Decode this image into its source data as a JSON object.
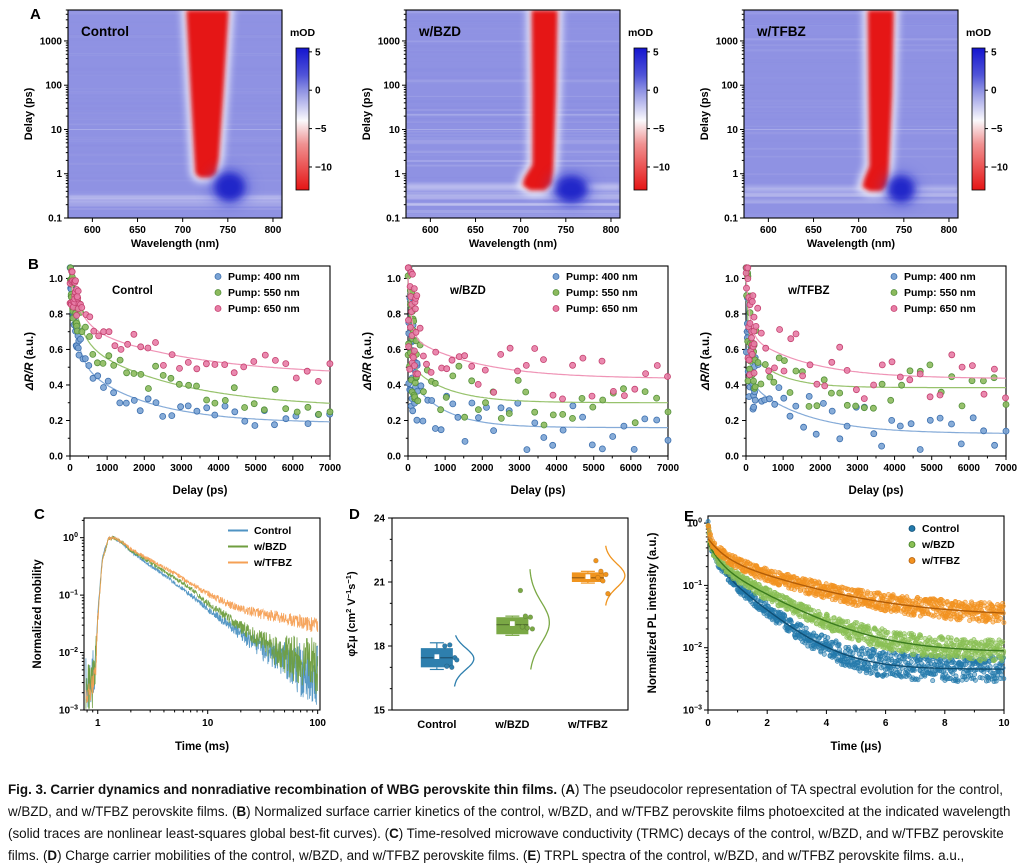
{
  "panel_labels": {
    "A": "A",
    "B": "B",
    "C": "C",
    "D": "D",
    "E": "E"
  },
  "figure": {
    "caption": [
      {
        "b": true,
        "t": "Fig. 3. Carrier dynamics and nonradiative recombination of WBG perovskite thin films."
      },
      {
        "b": false,
        "t": " ("
      },
      {
        "b": true,
        "t": "A"
      },
      {
        "b": false,
        "t": ") The pseudocolor representation of TA spectral evolution for the control, w/BZD, and w/TFBZ perovskite films. ("
      },
      {
        "b": true,
        "t": "B"
      },
      {
        "b": false,
        "t": ") Normalized surface carrier kinetics of the control, w/BZD, and w/TFBZ perovskite films photoexcited at the indicated wavelength (solid traces are nonlinear least-squares global best-fit curves). ("
      },
      {
        "b": true,
        "t": "C"
      },
      {
        "b": false,
        "t": ") Time-resolved microwave conductivity (TRMC) decays of the control, w/BZD, and w/TFBZ perovskite films. ("
      },
      {
        "b": true,
        "t": "D"
      },
      {
        "b": false,
        "t": ") Charge carrier mobilities of the control, w/BZD, and w/TFBZ perovskite films. ("
      },
      {
        "b": true,
        "t": "E"
      },
      {
        "b": false,
        "t": ") TRPL spectra of the control, w/BZD, and w/TFBZ perovskite films. a.u., arbitrary unit."
      }
    ]
  },
  "chart_data": [
    {
      "type": "heatmap",
      "label": "Control",
      "xlabel": "Wavelength (nm)",
      "ylabel": "Delay (ps)",
      "xlim": [
        573,
        810
      ],
      "xticks": [
        600,
        650,
        700,
        750,
        800
      ],
      "ylog": [
        0.1,
        5000
      ],
      "yticks": [
        0.1,
        1,
        10,
        100,
        1000
      ],
      "base_color": "#8f92e3",
      "noise": 0.07,
      "band_color": "#e51414",
      "band_poly": [
        [
          704,
          5000
        ],
        [
          709,
          60
        ],
        [
          713,
          2.2
        ],
        [
          714,
          1.0
        ],
        [
          719,
          0.82
        ],
        [
          731,
          0.82
        ],
        [
          737,
          1.0
        ],
        [
          740,
          2.2
        ],
        [
          745,
          60
        ],
        [
          751,
          5000
        ]
      ],
      "blob": {
        "nm": 752,
        "ps": 0.5,
        "rnm": 17,
        "rdec": 0.33
      },
      "stripe_ps": 0.28,
      "stripe_op": 0.25,
      "colorbar": {
        "title": "mOD",
        "ticks": [
          5,
          0,
          -5,
          -10
        ],
        "vrange": [
          5.5,
          -13
        ],
        "stops": [
          [
            0,
            "#1414cf"
          ],
          [
            0.19,
            "#5054d8"
          ],
          [
            0.3,
            "#8f92e3"
          ],
          [
            0.51,
            "#faf9fc"
          ],
          [
            0.68,
            "#f09090"
          ],
          [
            1,
            "#e51414"
          ]
        ]
      }
    },
    {
      "type": "heatmap",
      "label": "w/BZD",
      "xlabel": "Wavelength (nm)",
      "ylabel": "Delay (ps)",
      "xlim": [
        573,
        810
      ],
      "xticks": [
        600,
        650,
        700,
        750,
        800
      ],
      "ylog": [
        0.1,
        5000
      ],
      "yticks": [
        0.1,
        1,
        10,
        100,
        1000
      ],
      "base_color": "#8f92e3",
      "noise": 0.13,
      "band_color": "#e51414",
      "band_poly": [
        [
          712,
          5000
        ],
        [
          713,
          60
        ],
        [
          713,
          1.6
        ],
        [
          704,
          0.8
        ],
        [
          702,
          0.55
        ],
        [
          710,
          0.42
        ],
        [
          727,
          0.42
        ],
        [
          734,
          0.58
        ],
        [
          736,
          1.1
        ],
        [
          739,
          60
        ],
        [
          741,
          5000
        ]
      ],
      "blob": {
        "nm": 756,
        "ps": 0.45,
        "rnm": 18,
        "rdec": 0.3
      },
      "stripe_ps": 0.5,
      "stripe_op": 0.45,
      "colorbar": {
        "title": "mOD",
        "ticks": [
          5,
          0,
          -5,
          -10
        ],
        "vrange": [
          5.5,
          -13
        ],
        "stops": [
          [
            0,
            "#1414cf"
          ],
          [
            0.19,
            "#5054d8"
          ],
          [
            0.3,
            "#8f92e3"
          ],
          [
            0.51,
            "#faf9fc"
          ],
          [
            0.68,
            "#f09090"
          ],
          [
            1,
            "#e51414"
          ]
        ]
      }
    },
    {
      "type": "heatmap",
      "label": "w/TFBZ",
      "xlabel": "Wavelength (nm)",
      "ylabel": "Delay (ps)",
      "xlim": [
        573,
        810
      ],
      "xticks": [
        600,
        650,
        700,
        750,
        800
      ],
      "ylog": [
        0.1,
        5000
      ],
      "yticks": [
        0.1,
        1,
        10,
        100,
        1000
      ],
      "base_color": "#8f92e3",
      "noise": 0.08,
      "band_color": "#e51414",
      "band_poly": [
        [
          710,
          5000
        ],
        [
          711,
          60
        ],
        [
          712,
          1.5
        ],
        [
          706,
          0.75
        ],
        [
          704,
          0.5
        ],
        [
          712,
          0.4
        ],
        [
          725,
          0.4
        ],
        [
          731,
          0.52
        ],
        [
          733,
          1.0
        ],
        [
          737,
          60
        ],
        [
          739,
          5000
        ]
      ],
      "blob": {
        "nm": 747,
        "ps": 0.45,
        "rnm": 15,
        "rdec": 0.3
      },
      "stripe_ps": 0.45,
      "stripe_op": 0.3,
      "colorbar": {
        "title": "mOD",
        "ticks": [
          5,
          0,
          -5,
          -10
        ],
        "vrange": [
          5.5,
          -13
        ],
        "stops": [
          [
            0,
            "#1414cf"
          ],
          [
            0.19,
            "#5054d8"
          ],
          [
            0.3,
            "#8f92e3"
          ],
          [
            0.51,
            "#faf9fc"
          ],
          [
            0.68,
            "#f09090"
          ],
          [
            1,
            "#e51414"
          ]
        ]
      }
    },
    {
      "type": "kinetics",
      "label": "Control",
      "xlabel": "Delay (ps)",
      "ylabel_parts": [
        {
          "t": "ΔR/R",
          "i": true
        },
        {
          "t": " (a.u.)"
        }
      ],
      "xlim": [
        0,
        7000
      ],
      "xticks": [
        0,
        1000,
        2000,
        3000,
        4000,
        5000,
        6000,
        7000
      ],
      "ylim": [
        0,
        1.07
      ],
      "yticks": [
        "0.0",
        "0.2",
        "0.4",
        "0.6",
        "0.8",
        "1.0"
      ],
      "series": [
        {
          "name": "Pump: 400 nm",
          "fill": "#7aa3d4",
          "edge": "#3c6fae",
          "line": "#85abd8",
          "fit": {
            "y0": 0.185,
            "A1": 0.45,
            "t1": 180,
            "A2": 0.37,
            "t2": 1800
          },
          "noise": 0.022,
          "early": 1.2
        },
        {
          "name": "Pump: 550 nm",
          "fill": "#8cba5d",
          "edge": "#55913c",
          "line": "#97c26c",
          "fit": {
            "y0": 0.27,
            "A1": 0.33,
            "t1": 250,
            "A2": 0.4,
            "t2": 2600
          },
          "noise": 0.024,
          "early": 1.2
        },
        {
          "name": "Pump: 650 nm",
          "fill": "#e87ca6",
          "edge": "#c4426f",
          "line": "#ef94b6",
          "fit": {
            "y0": 0.45,
            "A1": 0.25,
            "t1": 300,
            "A2": 0.3,
            "t2": 3000
          },
          "noise": 0.024,
          "early": 1.2
        }
      ]
    },
    {
      "type": "kinetics",
      "label": "w/BZD",
      "xlabel": "Delay (ps)",
      "ylabel_parts": [
        {
          "t": "ΔR/R",
          "i": true
        },
        {
          "t": " (a.u.)"
        }
      ],
      "xlim": [
        0,
        7000
      ],
      "xticks": [
        0,
        1000,
        2000,
        3000,
        4000,
        5000,
        6000,
        7000
      ],
      "ylim": [
        0,
        1.07
      ],
      "yticks": [
        "0.0",
        "0.2",
        "0.4",
        "0.6",
        "0.8",
        "1.0"
      ],
      "series": [
        {
          "name": "Pump: 400 nm",
          "fill": "#7aa3d4",
          "edge": "#3c6fae",
          "line": "#85abd8",
          "fit": {
            "y0": 0.16,
            "A1": 0.55,
            "t1": 60,
            "A2": 0.29,
            "t2": 900
          },
          "noise": 0.045,
          "early": 2.5
        },
        {
          "name": "Pump: 550 nm",
          "fill": "#8cba5d",
          "edge": "#55913c",
          "line": "#97c26c",
          "fit": {
            "y0": 0.3,
            "A1": 0.48,
            "t1": 70,
            "A2": 0.22,
            "t2": 1000
          },
          "noise": 0.05,
          "early": 2.5
        },
        {
          "name": "Pump: 650 nm",
          "fill": "#e87ca6",
          "edge": "#c4426f",
          "line": "#ef94b6",
          "fit": {
            "y0": 0.435,
            "A1": 0.33,
            "t1": 90,
            "A2": 0.24,
            "t2": 1800
          },
          "noise": 0.05,
          "early": 2.8
        }
      ]
    },
    {
      "type": "kinetics",
      "label": "w/TFBZ",
      "xlabel": "Delay (ps)",
      "ylabel_parts": [
        {
          "t": "ΔR/R",
          "i": true
        },
        {
          "t": " (a.u.)"
        }
      ],
      "xlim": [
        0,
        7000
      ],
      "xticks": [
        0,
        1000,
        2000,
        3000,
        4000,
        5000,
        6000,
        7000
      ],
      "ylim": [
        0,
        1.07
      ],
      "yticks": [
        "0.0",
        "0.2",
        "0.4",
        "0.6",
        "0.8",
        "1.0"
      ],
      "series": [
        {
          "name": "Pump: 400 nm",
          "fill": "#7aa3d4",
          "edge": "#3c6fae",
          "line": "#85abd8",
          "fit": {
            "y0": 0.125,
            "A1": 0.52,
            "t1": 80,
            "A2": 0.3,
            "t2": 1500
          },
          "noise": 0.04,
          "early": 2.2
        },
        {
          "name": "Pump: 550 nm",
          "fill": "#8cba5d",
          "edge": "#55913c",
          "line": "#97c26c",
          "fit": {
            "y0": 0.385,
            "A1": 0.42,
            "t1": 60,
            "A2": 0.22,
            "t2": 800
          },
          "noise": 0.045,
          "early": 2.4
        },
        {
          "name": "Pump: 650 nm",
          "fill": "#e87ca6",
          "edge": "#c4426f",
          "line": "#ef94b6",
          "fit": {
            "y0": 0.435,
            "A1": 0.33,
            "t1": 100,
            "A2": 0.25,
            "t2": 1600
          },
          "noise": 0.05,
          "early": 2.6
        }
      ]
    },
    {
      "type": "trmc",
      "xlabel": "Time (ms)",
      "ylabel": "Normalized mobility",
      "xlog": [
        0.75,
        105
      ],
      "xticks": [
        1,
        10,
        100
      ],
      "ylog": [
        0.001,
        2.2
      ],
      "ytick_exp": [
        0,
        -1,
        -2,
        -3
      ],
      "series": [
        {
          "name": "Control",
          "color": "#4f93c3",
          "floor": 0.0045,
          "namp": 0.5,
          "anchors": [
            [
              0.8,
              0.003
            ],
            [
              0.95,
              0.006
            ],
            [
              1.0,
              0.05
            ],
            [
              1.1,
              0.45
            ],
            [
              1.25,
              0.95
            ],
            [
              1.4,
              1.0
            ],
            [
              1.7,
              0.78
            ],
            [
              2,
              0.57
            ],
            [
              3,
              0.33
            ],
            [
              5,
              0.165
            ],
            [
              7,
              0.1
            ],
            [
              10,
              0.058
            ],
            [
              15,
              0.032
            ],
            [
              20,
              0.021
            ],
            [
              30,
              0.012
            ],
            [
              50,
              0.0075
            ],
            [
              70,
              0.005
            ],
            [
              100,
              0.004
            ]
          ]
        },
        {
          "name": "w/BZD",
          "color": "#6f9e3f",
          "floor": 0.006,
          "namp": 0.5,
          "anchors": [
            [
              0.8,
              0.002
            ],
            [
              0.95,
              0.005
            ],
            [
              1.0,
              0.04
            ],
            [
              1.1,
              0.4
            ],
            [
              1.25,
              0.95
            ],
            [
              1.4,
              1.0
            ],
            [
              1.7,
              0.8
            ],
            [
              2,
              0.6
            ],
            [
              3,
              0.37
            ],
            [
              5,
              0.2
            ],
            [
              7,
              0.13
            ],
            [
              10,
              0.072
            ],
            [
              15,
              0.042
            ],
            [
              20,
              0.028
            ],
            [
              30,
              0.016
            ],
            [
              50,
              0.009
            ],
            [
              70,
              0.0068
            ],
            [
              100,
              0.0055
            ]
          ]
        },
        {
          "name": "w/TFBZ",
          "color": "#f5a055",
          "floor": 0.02,
          "namp": 0.18,
          "anchors": [
            [
              0.8,
              0.0015
            ],
            [
              0.95,
              0.004
            ],
            [
              1.0,
              0.035
            ],
            [
              1.1,
              0.4
            ],
            [
              1.25,
              0.96
            ],
            [
              1.4,
              1.0
            ],
            [
              1.7,
              0.82
            ],
            [
              2,
              0.63
            ],
            [
              3,
              0.41
            ],
            [
              5,
              0.24
            ],
            [
              7,
              0.16
            ],
            [
              10,
              0.105
            ],
            [
              15,
              0.072
            ],
            [
              20,
              0.058
            ],
            [
              30,
              0.047
            ],
            [
              50,
              0.04
            ],
            [
              70,
              0.034
            ],
            [
              100,
              0.029
            ]
          ]
        }
      ]
    },
    {
      "type": "boxviolin",
      "ylabel_parts": [
        {
          "t": "φΣμ (cm"
        },
        {
          "t": "2",
          "sup": true
        },
        {
          "t": " V"
        },
        {
          "t": "−1",
          "sup": true
        },
        {
          "t": "s"
        },
        {
          "t": "−1",
          "sup": true
        },
        {
          "t": ")"
        }
      ],
      "ylim": [
        15,
        24
      ],
      "yticks": [
        15,
        18,
        21,
        24
      ],
      "categories": [
        "Control",
        "w/BZD",
        "w/TFBZ"
      ],
      "groups": [
        {
          "name": "Control",
          "color": "#2e7fae",
          "box": {
            "q1": 17.0,
            "median": 17.45,
            "q3": 17.9,
            "wlo": 16.9,
            "whi": 18.15,
            "mean": 17.5
          },
          "points": [
            18.0,
            18.05,
            17.45,
            17.05,
            17.0,
            17.35
          ],
          "violin": {
            "center": 17.4,
            "sd": 0.5,
            "range": [
              16.1,
              18.5
            ]
          }
        },
        {
          "name": "w/BZD",
          "color": "#7aa845",
          "box": {
            "q1": 18.55,
            "median": 19.0,
            "q3": 19.35,
            "wlo": 18.5,
            "whi": 19.4,
            "mean": 19.05
          },
          "points": [
            20.6,
            19.4,
            19.35,
            18.9,
            18.85,
            18.8
          ],
          "violin": {
            "center": 19.1,
            "sd": 0.95,
            "range": [
              16.9,
              21.6
            ]
          }
        },
        {
          "name": "w/TFBZ",
          "color": "#f0941e",
          "box": {
            "q1": 21.0,
            "median": 21.2,
            "q3": 21.45,
            "wlo": 20.95,
            "whi": 21.5,
            "mean": 21.25
          },
          "points": [
            22.0,
            21.5,
            21.35,
            21.2,
            21.05,
            20.45
          ],
          "violin": {
            "center": 21.3,
            "sd": 0.55,
            "range": [
              19.9,
              22.7
            ]
          }
        }
      ]
    },
    {
      "type": "trpl",
      "xlabel": "Time (μs)",
      "ylabel": "Normalized PL intensity (a.u.)",
      "xlim": [
        0,
        10
      ],
      "xticks": [
        0,
        2,
        4,
        6,
        8,
        10
      ],
      "ylog": [
        0.001,
        1.3
      ],
      "ytick_exp": [
        0,
        -1,
        -2,
        -3
      ],
      "series": [
        {
          "name": "Control",
          "fill": "#2379ab",
          "line": "#0f4e74",
          "fit": {
            "y0": 0.0045,
            "A1": 0.28,
            "t1": 0.25,
            "A2": 0.22,
            "t2": 1.1
          },
          "namp": 0.16
        },
        {
          "name": "w/BZD",
          "fill": "#8abf55",
          "line": "#3a7a1e",
          "fit": {
            "y0": 0.0085,
            "A1": 0.25,
            "t1": 0.3,
            "A2": 0.22,
            "t2": 1.6
          },
          "namp": 0.13
        },
        {
          "name": "w/TFBZ",
          "fill": "#f29220",
          "line": "#b15c07",
          "fit": {
            "y0": 0.032,
            "A1": 0.27,
            "t1": 0.4,
            "A2": 0.26,
            "t2": 2.4
          },
          "namp": 0.11
        }
      ]
    }
  ]
}
